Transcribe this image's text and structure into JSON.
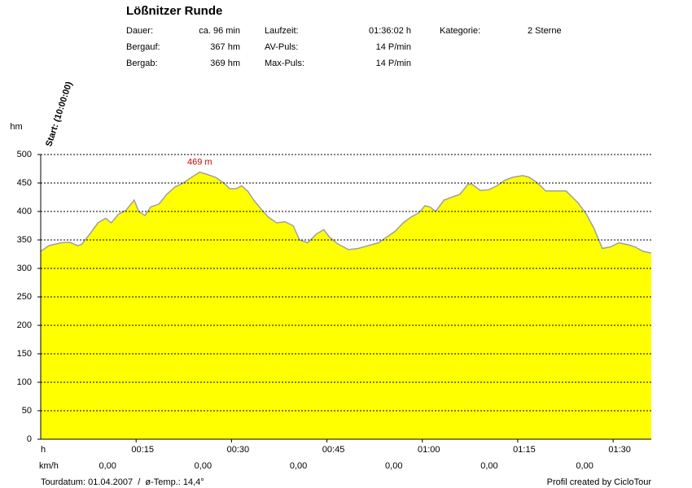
{
  "chart_data": {
    "type": "area",
    "title": "Lößnitzer Runde",
    "stats": [
      [
        {
          "label": "Dauer:",
          "value": "ca. 96 min"
        },
        {
          "label": "Laufzeit:",
          "value": "01:36:02 h"
        },
        {
          "label": "Kategorie:",
          "value": "2 Sterne"
        }
      ],
      [
        {
          "label": "Bergauf:",
          "value": "367 hm"
        },
        {
          "label": "AV-Puls:",
          "value": "14 P/min"
        }
      ],
      [
        {
          "label": "Bergab:",
          "value": "369 hm"
        },
        {
          "label": "Max-Puls:",
          "value": "14 P/min"
        }
      ]
    ],
    "start_label": "Start: (10:00:00)",
    "y_label": "hm",
    "x_label": "h",
    "speed_label": "km/h",
    "speed_values": [
      "0,00",
      "0,00",
      "0,00",
      "0,00",
      "0,00",
      "0,00"
    ],
    "max_label": "469 m",
    "footer_left": "Tourdatum: 01.04.2007  /  ø-Temp.: 14,4°",
    "footer_right": "Profil created by CicloTour",
    "color": "#ffff00",
    "line_color": "#a0a0a0",
    "grid": true,
    "x": [
      0,
      1.3,
      3.2,
      4.5,
      5.8,
      6.4,
      7.7,
      9.0,
      10.2,
      11.1,
      12.2,
      13.4,
      14.7,
      15.4,
      16.4,
      17.3,
      18.6,
      19.8,
      21.1,
      22.4,
      23.7,
      25.0,
      26.2,
      27.5,
      28.8,
      29.7,
      30.7,
      31.6,
      32.6,
      33.5,
      34.6,
      35.8,
      37.1,
      38.4,
      39.7,
      40.7,
      42.0,
      43.3,
      44.5,
      45.4,
      46.7,
      48.4,
      49.9,
      51.5,
      53.1,
      54.4,
      55.7,
      57.0,
      58.2,
      59.5,
      60.4,
      61.2,
      62.1,
      63.4,
      64.6,
      65.9,
      67.2,
      67.8,
      69.1,
      70.4,
      71.7,
      73.0,
      74.2,
      75.8,
      76.8,
      78.1,
      79.4,
      80.6,
      82.6,
      84.5,
      85.8,
      87.0,
      88.3,
      89.6,
      90.9,
      92.2,
      93.4,
      94.7,
      96.0
    ],
    "values": [
      330,
      340,
      345,
      346,
      340,
      342,
      360,
      380,
      388,
      380,
      395,
      402,
      420,
      400,
      393,
      408,
      413,
      430,
      443,
      450,
      460,
      469,
      465,
      460,
      450,
      440,
      440,
      445,
      435,
      420,
      405,
      390,
      380,
      382,
      375,
      350,
      345,
      360,
      368,
      355,
      343,
      333,
      335,
      340,
      345,
      355,
      365,
      380,
      390,
      398,
      410,
      408,
      400,
      420,
      425,
      430,
      448,
      448,
      437,
      438,
      445,
      455,
      460,
      463,
      460,
      450,
      436,
      436,
      436,
      415,
      395,
      370,
      335,
      338,
      345,
      342,
      338,
      330,
      327
    ],
    "xlim": [
      0,
      96
    ],
    "ylim": [
      0,
      500
    ],
    "yticks": [
      0,
      50,
      100,
      150,
      200,
      250,
      300,
      350,
      400,
      450,
      500
    ],
    "xticks": [
      {
        "value": 15,
        "label": "00:15"
      },
      {
        "value": 30,
        "label": "00:30"
      },
      {
        "value": 45,
        "label": "00:45"
      },
      {
        "value": 60,
        "label": "01:00"
      },
      {
        "value": 75,
        "label": "01:15"
      },
      {
        "value": 90,
        "label": "01:30"
      }
    ]
  }
}
